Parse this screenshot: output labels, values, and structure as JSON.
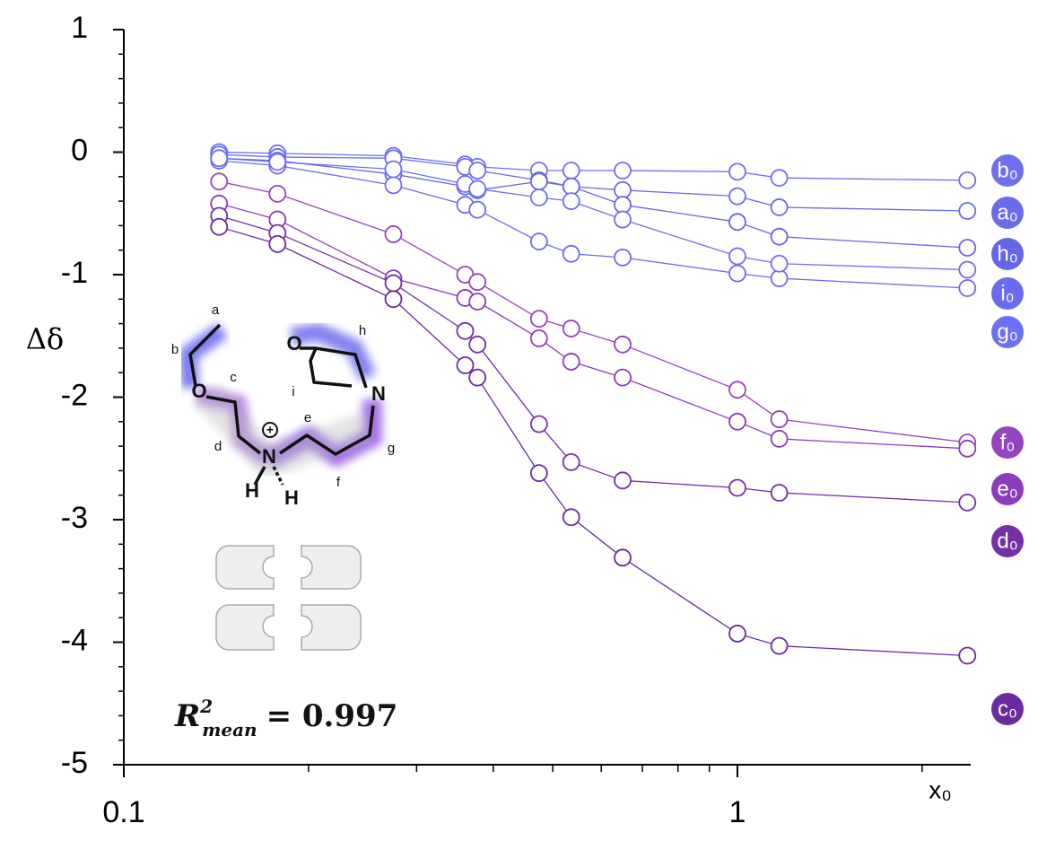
{
  "chart_data": {
    "type": "line",
    "x_scale": "log",
    "y_label": "Δδ",
    "x_label": "x₀",
    "x": [
      0.143,
      0.178,
      0.275,
      0.36,
      0.377,
      0.475,
      0.536,
      0.65,
      1.0,
      1.17,
      2.37
    ],
    "xlim": [
      0.1,
      2.4
    ],
    "xticks": [
      0.1,
      1
    ],
    "xminorticks": [
      0.2,
      0.3,
      0.4,
      0.5,
      0.6,
      0.7,
      0.8,
      0.9,
      2
    ],
    "ylim": [
      -5,
      1
    ],
    "yticks": [
      1,
      0,
      -1,
      -2,
      -3,
      -4,
      -5
    ],
    "yminorticks": [
      0.8,
      0.6,
      0.4,
      0.2,
      -0.2,
      -0.4,
      -0.6,
      -0.8,
      -1.2,
      -1.4,
      -1.6,
      -1.8,
      -2.2,
      -2.4,
      -2.6,
      -2.8,
      -3.2,
      -3.4,
      -3.6,
      -3.8,
      -4.2,
      -4.4,
      -4.6,
      -4.8
    ],
    "series": [
      {
        "name": "b₀",
        "color": "#6f6ff0",
        "values": [
          0,
          -0.01,
          -0.03,
          -0.1,
          -0.12,
          -0.15,
          -0.15,
          -0.15,
          -0.16,
          -0.21,
          -0.23
        ]
      },
      {
        "name": "a₀",
        "color": "#6a6cec",
        "values": [
          -0.02,
          -0.04,
          -0.05,
          -0.12,
          -0.15,
          -0.23,
          -0.28,
          -0.31,
          -0.36,
          -0.45,
          -0.48
        ]
      },
      {
        "name": "h₀",
        "color": "#6566e8",
        "values": [
          -0.05,
          -0.07,
          -0.18,
          -0.28,
          -0.31,
          -0.24,
          -0.28,
          -0.43,
          -0.57,
          -0.69,
          -0.78
        ]
      },
      {
        "name": "i₀",
        "color": "#6a6cf0",
        "values": [
          -0.07,
          -0.11,
          -0.27,
          -0.43,
          -0.47,
          -0.73,
          -0.83,
          -0.86,
          -0.99,
          -1.03,
          -1.11
        ]
      },
      {
        "name": "g₀",
        "color": "#6c70f4",
        "values": [
          -0.05,
          -0.08,
          -0.14,
          -0.26,
          -0.3,
          -0.37,
          -0.4,
          -0.55,
          -0.85,
          -0.91,
          -0.96
        ]
      },
      {
        "name": "f₀",
        "color": "#9444c0",
        "values": [
          -0.24,
          -0.34,
          -0.67,
          -1.0,
          -1.06,
          -1.36,
          -1.44,
          -1.57,
          -1.94,
          -2.18,
          -2.37
        ]
      },
      {
        "name": "e₀",
        "color": "#8a3cba",
        "values": [
          -0.42,
          -0.55,
          -1.03,
          -1.19,
          -1.22,
          -1.52,
          -1.71,
          -1.84,
          -2.2,
          -2.34,
          -2.42
        ]
      },
      {
        "name": "d₀",
        "color": "#7430a6",
        "values": [
          -0.52,
          -0.66,
          -1.07,
          -1.46,
          -1.57,
          -2.22,
          -2.53,
          -2.68,
          -2.74,
          -2.78,
          -2.86
        ]
      },
      {
        "name": "c₀",
        "color": "#6a2c9c",
        "values": [
          -0.61,
          -0.75,
          -1.2,
          -1.74,
          -1.84,
          -2.62,
          -2.98,
          -3.31,
          -3.93,
          -4.03,
          -4.11
        ]
      }
    ],
    "annotation": {
      "symbol": "R",
      "sup": "2",
      "sub": "mean",
      "rest": "= 0.997"
    },
    "molecule_labels": {
      "a": "a",
      "b": "b",
      "c": "c",
      "d": "d",
      "e": "e",
      "f": "f",
      "g": "g",
      "h": "h",
      "i": "i",
      "O1": "O",
      "O2": "O",
      "N1": "N",
      "N2": "N",
      "H1": "H",
      "H2": "H",
      "plus": "+"
    }
  }
}
